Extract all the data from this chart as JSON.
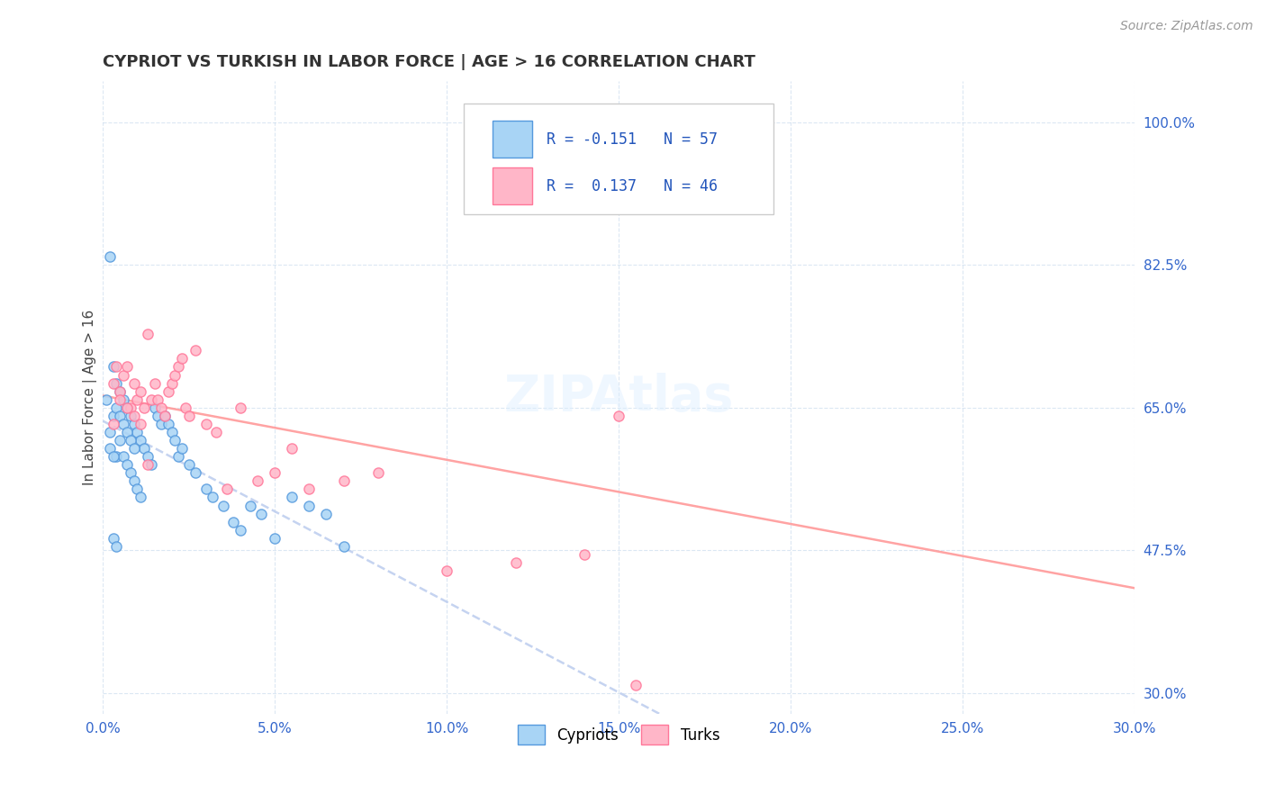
{
  "title": "CYPRIOT VS TURKISH IN LABOR FORCE | AGE > 16 CORRELATION CHART",
  "source_text": "Source: ZipAtlas.com",
  "ylabel": "In Labor Force | Age > 16",
  "xlim": [
    0.0,
    0.3
  ],
  "ylim": [
    0.275,
    1.05
  ],
  "xtick_labels": [
    "0.0%",
    "5.0%",
    "10.0%",
    "15.0%",
    "20.0%",
    "25.0%",
    "30.0%"
  ],
  "xtick_values": [
    0.0,
    0.05,
    0.1,
    0.15,
    0.2,
    0.25,
    0.3
  ],
  "ytick_labels": [
    "30.0%",
    "47.5%",
    "65.0%",
    "82.5%",
    "100.0%"
  ],
  "ytick_values": [
    0.3,
    0.475,
    0.65,
    0.825,
    1.0
  ],
  "cypriot_color": "#A8D4F5",
  "turk_color": "#FFB6C8",
  "cypriot_edge": "#5599DD",
  "turk_edge": "#FF7799",
  "trend_cypriot_color": "#BBCCEE",
  "trend_turk_color": "#FF9999",
  "R_cypriot": -0.151,
  "N_cypriot": 57,
  "R_turk": 0.137,
  "N_turk": 46,
  "cypriot_x": [
    0.001,
    0.002,
    0.002,
    0.003,
    0.003,
    0.004,
    0.004,
    0.005,
    0.005,
    0.006,
    0.006,
    0.007,
    0.007,
    0.008,
    0.008,
    0.009,
    0.009,
    0.01,
    0.01,
    0.011,
    0.011,
    0.012,
    0.013,
    0.014,
    0.015,
    0.016,
    0.017,
    0.018,
    0.019,
    0.02,
    0.021,
    0.022,
    0.023,
    0.025,
    0.027,
    0.03,
    0.032,
    0.035,
    0.038,
    0.04,
    0.043,
    0.046,
    0.05,
    0.055,
    0.06,
    0.065,
    0.07,
    0.002,
    0.003,
    0.004,
    0.005,
    0.006,
    0.007,
    0.008,
    0.009,
    0.003,
    0.004
  ],
  "cypriot_y": [
    0.66,
    0.835,
    0.62,
    0.7,
    0.64,
    0.68,
    0.59,
    0.67,
    0.61,
    0.66,
    0.59,
    0.65,
    0.58,
    0.64,
    0.57,
    0.63,
    0.56,
    0.62,
    0.55,
    0.61,
    0.54,
    0.6,
    0.59,
    0.58,
    0.65,
    0.64,
    0.63,
    0.64,
    0.63,
    0.62,
    0.61,
    0.59,
    0.6,
    0.58,
    0.57,
    0.55,
    0.54,
    0.53,
    0.51,
    0.5,
    0.53,
    0.52,
    0.49,
    0.54,
    0.53,
    0.52,
    0.48,
    0.6,
    0.59,
    0.65,
    0.64,
    0.63,
    0.62,
    0.61,
    0.6,
    0.49,
    0.48
  ],
  "turk_x": [
    0.003,
    0.004,
    0.005,
    0.006,
    0.007,
    0.008,
    0.009,
    0.01,
    0.011,
    0.012,
    0.013,
    0.014,
    0.015,
    0.016,
    0.017,
    0.018,
    0.019,
    0.02,
    0.021,
    0.022,
    0.023,
    0.024,
    0.025,
    0.027,
    0.03,
    0.033,
    0.036,
    0.04,
    0.045,
    0.05,
    0.055,
    0.06,
    0.07,
    0.08,
    0.1,
    0.12,
    0.14,
    0.15,
    0.003,
    0.005,
    0.007,
    0.009,
    0.011,
    0.013,
    0.155,
    0.16
  ],
  "turk_y": [
    0.68,
    0.7,
    0.67,
    0.69,
    0.7,
    0.65,
    0.68,
    0.66,
    0.67,
    0.65,
    0.74,
    0.66,
    0.68,
    0.66,
    0.65,
    0.64,
    0.67,
    0.68,
    0.69,
    0.7,
    0.71,
    0.65,
    0.64,
    0.72,
    0.63,
    0.62,
    0.55,
    0.65,
    0.56,
    0.57,
    0.6,
    0.55,
    0.56,
    0.57,
    0.45,
    0.46,
    0.47,
    0.64,
    0.63,
    0.66,
    0.65,
    0.64,
    0.63,
    0.58,
    0.31,
    1.0
  ]
}
